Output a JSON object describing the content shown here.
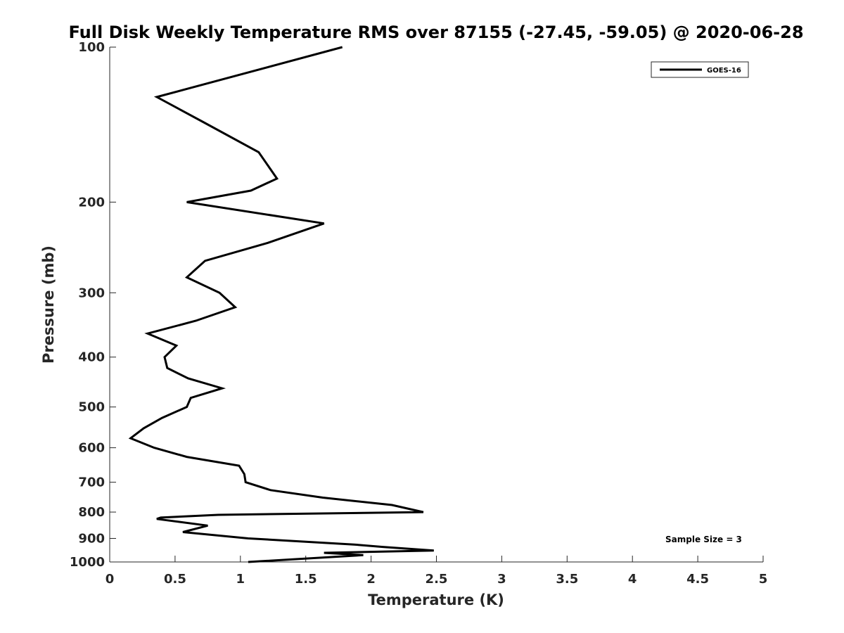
{
  "chart_data": {
    "type": "line",
    "title": "Full Disk Weekly Temperature RMS over 87155 (-27.45, -59.05) @ 2020-06-28",
    "xlabel": "Temperature (K)",
    "ylabel": "Pressure (mb)",
    "xlim": [
      0,
      5
    ],
    "ylim": [
      100,
      1000
    ],
    "y_scale": "log",
    "y_reversed": true,
    "x_ticks": [
      "0",
      "0.5",
      "1",
      "1.5",
      "2",
      "2.5",
      "3",
      "3.5",
      "4",
      "4.5",
      "5"
    ],
    "y_ticks": [
      "100",
      "200",
      "300",
      "400",
      "500",
      "600",
      "700",
      "800",
      "900",
      "1000"
    ],
    "legend_position": "top-right",
    "annotation": "Sample Size = 3",
    "color": "#000000",
    "series": [
      {
        "name": "GOES-16",
        "points": [
          [
            1.78,
            100
          ],
          [
            0.36,
            125
          ],
          [
            0.72,
            140
          ],
          [
            1.14,
            160
          ],
          [
            1.28,
            180
          ],
          [
            1.08,
            190
          ],
          [
            0.59,
            200
          ],
          [
            1.64,
            220
          ],
          [
            1.21,
            240
          ],
          [
            0.73,
            260
          ],
          [
            0.59,
            280
          ],
          [
            0.84,
            300
          ],
          [
            0.96,
            320
          ],
          [
            0.66,
            340
          ],
          [
            0.29,
            360
          ],
          [
            0.51,
            380
          ],
          [
            0.42,
            400
          ],
          [
            0.44,
            420
          ],
          [
            0.6,
            440
          ],
          [
            0.86,
            460
          ],
          [
            0.62,
            480
          ],
          [
            0.59,
            500
          ],
          [
            0.4,
            525
          ],
          [
            0.26,
            550
          ],
          [
            0.16,
            575
          ],
          [
            0.34,
            600
          ],
          [
            0.59,
            625
          ],
          [
            0.99,
            650
          ],
          [
            1.03,
            675
          ],
          [
            1.04,
            700
          ],
          [
            1.23,
            725
          ],
          [
            1.63,
            750
          ],
          [
            2.16,
            775
          ],
          [
            2.4,
            800
          ],
          [
            0.83,
            810
          ],
          [
            0.39,
            820
          ],
          [
            0.36,
            825
          ],
          [
            0.75,
            850
          ],
          [
            0.56,
            875
          ],
          [
            1.06,
            900
          ],
          [
            1.87,
            925
          ],
          [
            2.09,
            935
          ],
          [
            2.48,
            950
          ],
          [
            1.64,
            960
          ],
          [
            1.94,
            970
          ],
          [
            1.06,
            1000
          ]
        ]
      }
    ]
  }
}
